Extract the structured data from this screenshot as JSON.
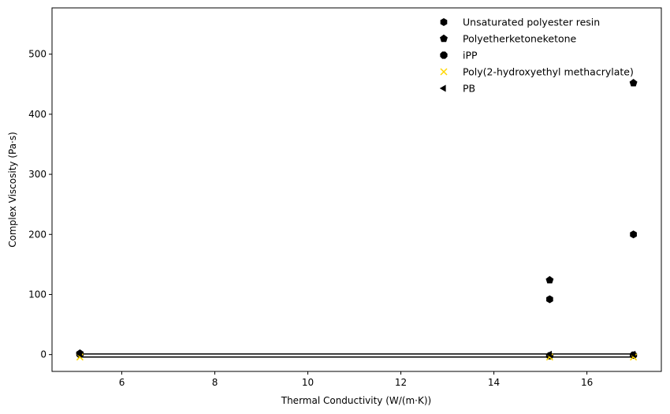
{
  "chart_data": {
    "type": "scatter",
    "title": "",
    "xlabel": "Thermal Conductivity (W/(m·K))",
    "ylabel": "Complex Viscosity (Pa·s)",
    "xlim": [
      4.5,
      17.6
    ],
    "ylim": [
      -28,
      577
    ],
    "xticks": [
      6,
      8,
      10,
      12,
      14,
      16
    ],
    "yticks": [
      0,
      100,
      200,
      300,
      400,
      500
    ],
    "grid": false,
    "legend_position": "top-right",
    "series": [
      {
        "name": "Unsaturated polyester resin",
        "marker": "hexagon",
        "color": "#000000",
        "x": [
          5.1,
          15.2,
          17.0
        ],
        "y": [
          1.5,
          92,
          200
        ]
      },
      {
        "name": "Polyetherketoneketone",
        "marker": "pentagon",
        "color": "#000000",
        "x": [
          5.1,
          15.2,
          17.0
        ],
        "y": [
          2,
          124,
          452
        ]
      },
      {
        "name": "iPP",
        "marker": "octagon",
        "color": "#000000",
        "x": [
          5.1,
          15.2,
          17.0
        ],
        "y": [
          0.5,
          -2,
          -1
        ]
      },
      {
        "name": "Poly(2-hydroxyethyl methacrylate)",
        "marker": "x",
        "color": "#ffd700",
        "x": [
          5.1,
          15.2,
          17.0
        ],
        "y": [
          -4,
          -4,
          -4
        ]
      },
      {
        "name": "PB",
        "marker": "triangle-left",
        "color": "#000000",
        "x": [
          5.1,
          15.2,
          17.0
        ],
        "y": [
          1,
          0.5,
          0.5
        ]
      }
    ],
    "lines": [
      {
        "x": [
          5.1,
          17.0
        ],
        "y": [
          1,
          1
        ],
        "color": "#000000"
      },
      {
        "x": [
          5.1,
          17.0
        ],
        "y": [
          -4,
          -4
        ],
        "color": "#000000"
      }
    ]
  }
}
